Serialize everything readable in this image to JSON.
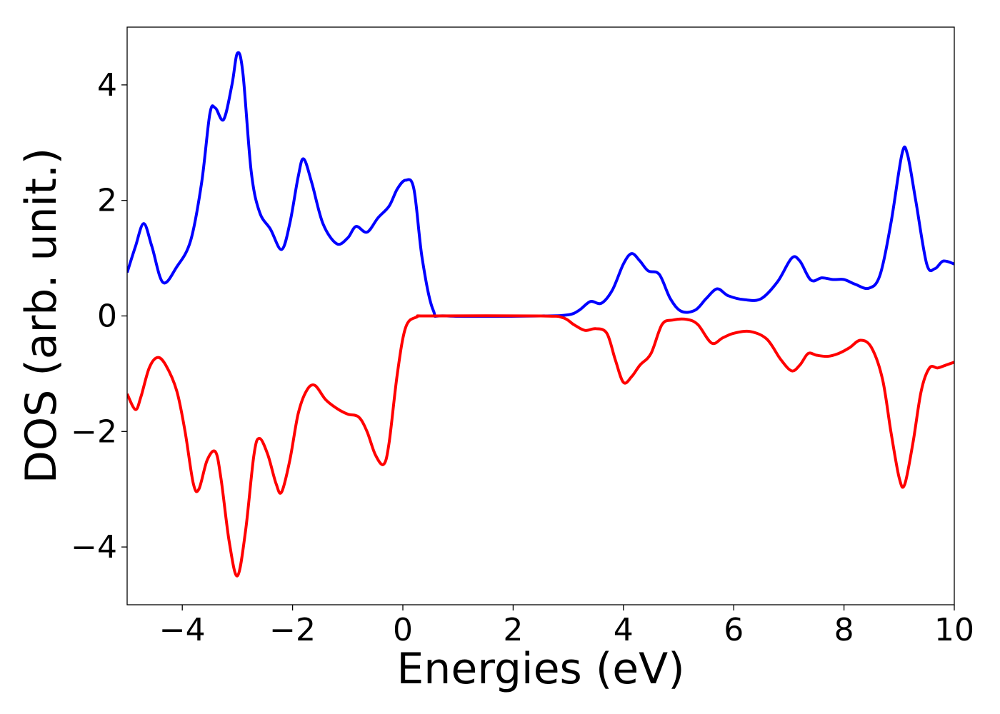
{
  "chart_data": {
    "type": "line",
    "title": "",
    "xlabel": "Energies (eV)",
    "ylabel": "DOS (arb. unit.)",
    "xlim": [
      -5,
      10
    ],
    "ylim": [
      -5,
      5
    ],
    "x_ticks": [
      -4,
      -2,
      0,
      2,
      4,
      6,
      8,
      10
    ],
    "x_tick_labels": [
      "−4",
      "−2",
      "0",
      "2",
      "4",
      "6",
      "8",
      "10"
    ],
    "y_ticks": [
      -4,
      -2,
      0,
      2,
      4
    ],
    "y_tick_labels": [
      "−4",
      "−2",
      "0",
      "2",
      "4"
    ],
    "grid": false,
    "legend": "none",
    "series": [
      {
        "color": "#0000ff",
        "points": [
          [
            -5.0,
            0.75
          ],
          [
            -4.85,
            1.2
          ],
          [
            -4.7,
            1.6
          ],
          [
            -4.55,
            1.2
          ],
          [
            -4.35,
            0.58
          ],
          [
            -4.1,
            0.85
          ],
          [
            -3.85,
            1.3
          ],
          [
            -3.65,
            2.3
          ],
          [
            -3.5,
            3.5
          ],
          [
            -3.4,
            3.6
          ],
          [
            -3.25,
            3.4
          ],
          [
            -3.1,
            4.0
          ],
          [
            -3.0,
            4.55
          ],
          [
            -2.9,
            4.2
          ],
          [
            -2.75,
            2.5
          ],
          [
            -2.6,
            1.8
          ],
          [
            -2.4,
            1.5
          ],
          [
            -2.2,
            1.15
          ],
          [
            -2.05,
            1.6
          ],
          [
            -1.9,
            2.4
          ],
          [
            -1.8,
            2.72
          ],
          [
            -1.65,
            2.3
          ],
          [
            -1.45,
            1.6
          ],
          [
            -1.2,
            1.25
          ],
          [
            -1.0,
            1.35
          ],
          [
            -0.85,
            1.55
          ],
          [
            -0.65,
            1.45
          ],
          [
            -0.45,
            1.7
          ],
          [
            -0.25,
            1.9
          ],
          [
            -0.1,
            2.2
          ],
          [
            0.05,
            2.35
          ],
          [
            0.2,
            2.2
          ],
          [
            0.35,
            1.0
          ],
          [
            0.55,
            0.1
          ],
          [
            0.8,
            0.0
          ],
          [
            2.5,
            0.0
          ],
          [
            3.0,
            0.02
          ],
          [
            3.2,
            0.1
          ],
          [
            3.4,
            0.25
          ],
          [
            3.6,
            0.22
          ],
          [
            3.8,
            0.45
          ],
          [
            4.0,
            0.9
          ],
          [
            4.15,
            1.08
          ],
          [
            4.3,
            0.95
          ],
          [
            4.45,
            0.78
          ],
          [
            4.65,
            0.72
          ],
          [
            4.85,
            0.3
          ],
          [
            5.05,
            0.08
          ],
          [
            5.3,
            0.1
          ],
          [
            5.5,
            0.3
          ],
          [
            5.7,
            0.47
          ],
          [
            5.9,
            0.35
          ],
          [
            6.2,
            0.28
          ],
          [
            6.5,
            0.3
          ],
          [
            6.8,
            0.6
          ],
          [
            7.05,
            1.0
          ],
          [
            7.2,
            0.95
          ],
          [
            7.4,
            0.62
          ],
          [
            7.6,
            0.66
          ],
          [
            7.8,
            0.63
          ],
          [
            8.0,
            0.63
          ],
          [
            8.2,
            0.55
          ],
          [
            8.45,
            0.48
          ],
          [
            8.65,
            0.7
          ],
          [
            8.85,
            1.6
          ],
          [
            9.05,
            2.8
          ],
          [
            9.15,
            2.8
          ],
          [
            9.3,
            2.0
          ],
          [
            9.5,
            0.9
          ],
          [
            9.65,
            0.82
          ],
          [
            9.8,
            0.95
          ],
          [
            10.0,
            0.9
          ]
        ]
      },
      {
        "color": "#ff0000",
        "points": [
          [
            -5.0,
            -1.35
          ],
          [
            -4.85,
            -1.62
          ],
          [
            -4.75,
            -1.4
          ],
          [
            -4.6,
            -0.9
          ],
          [
            -4.45,
            -0.72
          ],
          [
            -4.3,
            -0.85
          ],
          [
            -4.1,
            -1.3
          ],
          [
            -3.95,
            -2.0
          ],
          [
            -3.8,
            -2.9
          ],
          [
            -3.7,
            -3.0
          ],
          [
            -3.55,
            -2.5
          ],
          [
            -3.4,
            -2.35
          ],
          [
            -3.3,
            -2.8
          ],
          [
            -3.15,
            -3.9
          ],
          [
            -3.0,
            -4.5
          ],
          [
            -2.85,
            -3.7
          ],
          [
            -2.7,
            -2.4
          ],
          [
            -2.6,
            -2.12
          ],
          [
            -2.45,
            -2.4
          ],
          [
            -2.3,
            -2.9
          ],
          [
            -2.2,
            -3.05
          ],
          [
            -2.05,
            -2.5
          ],
          [
            -1.9,
            -1.7
          ],
          [
            -1.75,
            -1.3
          ],
          [
            -1.6,
            -1.2
          ],
          [
            -1.4,
            -1.45
          ],
          [
            -1.2,
            -1.6
          ],
          [
            -1.0,
            -1.7
          ],
          [
            -0.8,
            -1.75
          ],
          [
            -0.65,
            -2.0
          ],
          [
            -0.5,
            -2.4
          ],
          [
            -0.35,
            -2.57
          ],
          [
            -0.25,
            -2.2
          ],
          [
            -0.1,
            -1.0
          ],
          [
            0.05,
            -0.2
          ],
          [
            0.25,
            -0.02
          ],
          [
            0.5,
            0.0
          ],
          [
            2.5,
            0.0
          ],
          [
            2.9,
            -0.03
          ],
          [
            3.1,
            -0.15
          ],
          [
            3.3,
            -0.25
          ],
          [
            3.5,
            -0.22
          ],
          [
            3.7,
            -0.3
          ],
          [
            3.85,
            -0.75
          ],
          [
            4.0,
            -1.15
          ],
          [
            4.15,
            -1.05
          ],
          [
            4.3,
            -0.85
          ],
          [
            4.5,
            -0.65
          ],
          [
            4.7,
            -0.15
          ],
          [
            4.9,
            -0.07
          ],
          [
            5.15,
            -0.06
          ],
          [
            5.35,
            -0.15
          ],
          [
            5.6,
            -0.47
          ],
          [
            5.8,
            -0.38
          ],
          [
            6.0,
            -0.3
          ],
          [
            6.3,
            -0.27
          ],
          [
            6.6,
            -0.4
          ],
          [
            6.85,
            -0.75
          ],
          [
            7.05,
            -0.95
          ],
          [
            7.2,
            -0.85
          ],
          [
            7.35,
            -0.65
          ],
          [
            7.5,
            -0.68
          ],
          [
            7.7,
            -0.7
          ],
          [
            7.9,
            -0.65
          ],
          [
            8.1,
            -0.55
          ],
          [
            8.3,
            -0.42
          ],
          [
            8.5,
            -0.55
          ],
          [
            8.7,
            -1.1
          ],
          [
            8.85,
            -2.0
          ],
          [
            9.0,
            -2.8
          ],
          [
            9.1,
            -2.92
          ],
          [
            9.25,
            -2.2
          ],
          [
            9.4,
            -1.3
          ],
          [
            9.55,
            -0.9
          ],
          [
            9.7,
            -0.9
          ],
          [
            9.85,
            -0.85
          ],
          [
            10.0,
            -0.8
          ]
        ]
      }
    ]
  }
}
